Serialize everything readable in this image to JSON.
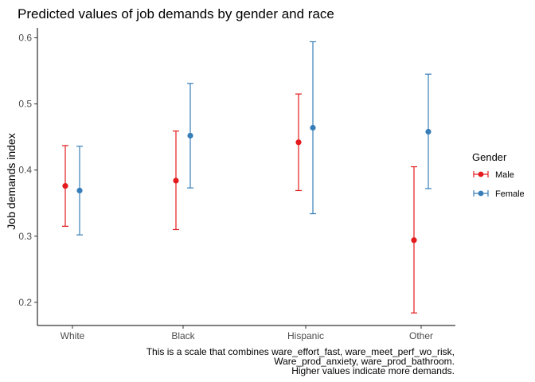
{
  "chart_data": {
    "type": "errorbar-point",
    "title": "Predicted values of job demands by gender and race",
    "xlabel": "",
    "ylabel": "Job demands index",
    "categories": [
      "White",
      "Black",
      "Hispanic",
      "Other"
    ],
    "y_ticks": [
      "0.2",
      "0.3",
      "0.4",
      "0.5",
      "0.6"
    ],
    "ylim": [
      0.165,
      0.615
    ],
    "grid": false,
    "legend": {
      "title": "Gender",
      "position": "right"
    },
    "series": [
      {
        "name": "Male",
        "color": "#e41a1c",
        "values": [
          0.376,
          0.384,
          0.442,
          0.294
        ],
        "lower": [
          0.315,
          0.31,
          0.369,
          0.184
        ],
        "upper": [
          0.437,
          0.459,
          0.515,
          0.405
        ]
      },
      {
        "name": "Female",
        "color": "#377eb8",
        "values": [
          0.369,
          0.452,
          0.464,
          0.458
        ],
        "lower": [
          0.302,
          0.373,
          0.334,
          0.372
        ],
        "upper": [
          0.436,
          0.531,
          0.594,
          0.545
        ]
      }
    ],
    "caption": [
      "This is a scale that combines ware_effort_fast, ware_meet_perf_wo_risk,",
      "Ware_prod_anxiety, ware_prod_bathroom.",
      "Higher values indicate more demands."
    ]
  }
}
